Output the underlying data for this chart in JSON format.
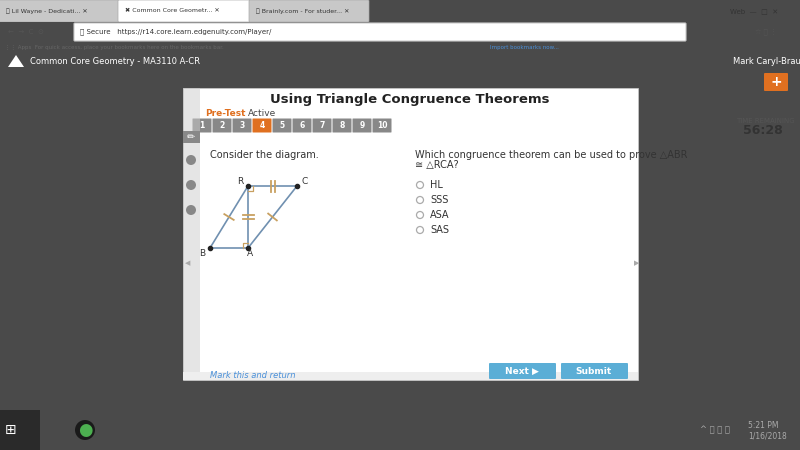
{
  "outer_bg": "#4a4a4a",
  "browser_bg": "#dcdcdc",
  "browser_tab_bg": "#e8e8e8",
  "browser_tab_active_stroke": "#aaa",
  "address_bar_bg": "#f5f5f5",
  "nav_bar_color": "#3d2b8a",
  "content_bg": "#ffffff",
  "content_card_bg": "#ffffff",
  "dark_side_bg": "#555555",
  "footer_bar_bg": "#f0f0f0",
  "title": "Using Triangle Congruence Theorems",
  "subtitle_left": "Pre-Test",
  "subtitle_right": "Active",
  "question_text": "Consider the diagram.",
  "question_right_line1": "Which congruence theorem can be used to prove △ABR",
  "question_right_line2": "≅ △RCA?",
  "options": [
    "HL",
    "SSS",
    "ASA",
    "SAS"
  ],
  "tab_numbers": [
    "1",
    "2",
    "3",
    "4",
    "5",
    "6",
    "7",
    "8",
    "9",
    "10"
  ],
  "active_tab": 3,
  "time_label": "TIME REMAINING",
  "time_value": "56:28",
  "nav_title": "Common Core Geometry - MA3110 A-CR",
  "nav_right": "Mark Caryl-Braun",
  "footer_link": "Mark this and return",
  "btn_next": "Next",
  "btn_submit": "Submit",
  "tick_color": "#c8a060",
  "line_color": "#7090b0",
  "right_angle_color": "#c8a060",
  "dot_color": "#222222",
  "taskbar_bg": "#1a1a1a",
  "apps_bar_bg": "#f8f8f8",
  "bookmarks_color": "#555",
  "import_color": "#4a90d9",
  "plus_btn_color": "#e07020"
}
